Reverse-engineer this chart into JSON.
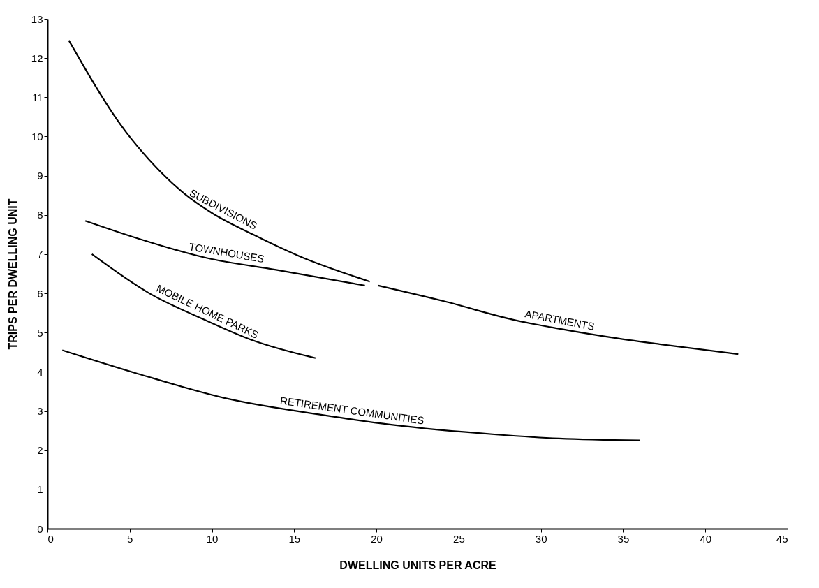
{
  "chart_data": {
    "type": "line",
    "xlabel": "DWELLING UNITS PER ACRE",
    "ylabel": "TRIPS PER DWELLING UNIT",
    "xlim": [
      0,
      45
    ],
    "ylim": [
      0,
      13
    ],
    "xticks": [
      0,
      5,
      10,
      15,
      20,
      25,
      30,
      35,
      40,
      45
    ],
    "yticks": [
      0,
      1,
      2,
      3,
      4,
      5,
      6,
      7,
      8,
      9,
      10,
      11,
      12,
      13
    ],
    "grid": false,
    "legend": false,
    "marker": "none",
    "line_style": "solid",
    "series": [
      {
        "name": "SUBDIVISIONS",
        "color": "#000000",
        "x": [
          1.3,
          4.8,
          6.2,
          8.3,
          10,
          12.5,
          15.3,
          19.6
        ],
        "values": [
          12.45,
          10.1,
          9.4,
          8.55,
          8.05,
          7.5,
          6.95,
          6.3
        ]
      },
      {
        "name": "TOWNHOUSES",
        "color": "#000000",
        "x": [
          2.3,
          5.5,
          9.7,
          13.9,
          19.3
        ],
        "values": [
          7.85,
          7.4,
          6.9,
          6.6,
          6.2
        ]
      },
      {
        "name": "MOBILE HOME PARKS",
        "color": "#000000",
        "x": [
          2.7,
          6.2,
          9.7,
          12.5,
          16.3
        ],
        "values": [
          7,
          6,
          5.3,
          4.8,
          4.35
        ]
      },
      {
        "name": "APARTMENTS",
        "color": "#000000",
        "x": [
          20.1,
          24.1,
          28.6,
          31.1,
          34.7,
          37.3,
          42
        ],
        "values": [
          6.2,
          5.8,
          5.3,
          5.1,
          4.85,
          4.7,
          4.45
        ]
      },
      {
        "name": "RETIREMENT COMMUNITIES",
        "color": "#000000",
        "x": [
          0.9,
          5.5,
          11.1,
          16.7,
          20.9,
          27.3,
          31.1,
          36
        ],
        "values": [
          4.55,
          3.95,
          3.3,
          2.9,
          2.65,
          2.4,
          2.3,
          2.25
        ]
      }
    ]
  }
}
